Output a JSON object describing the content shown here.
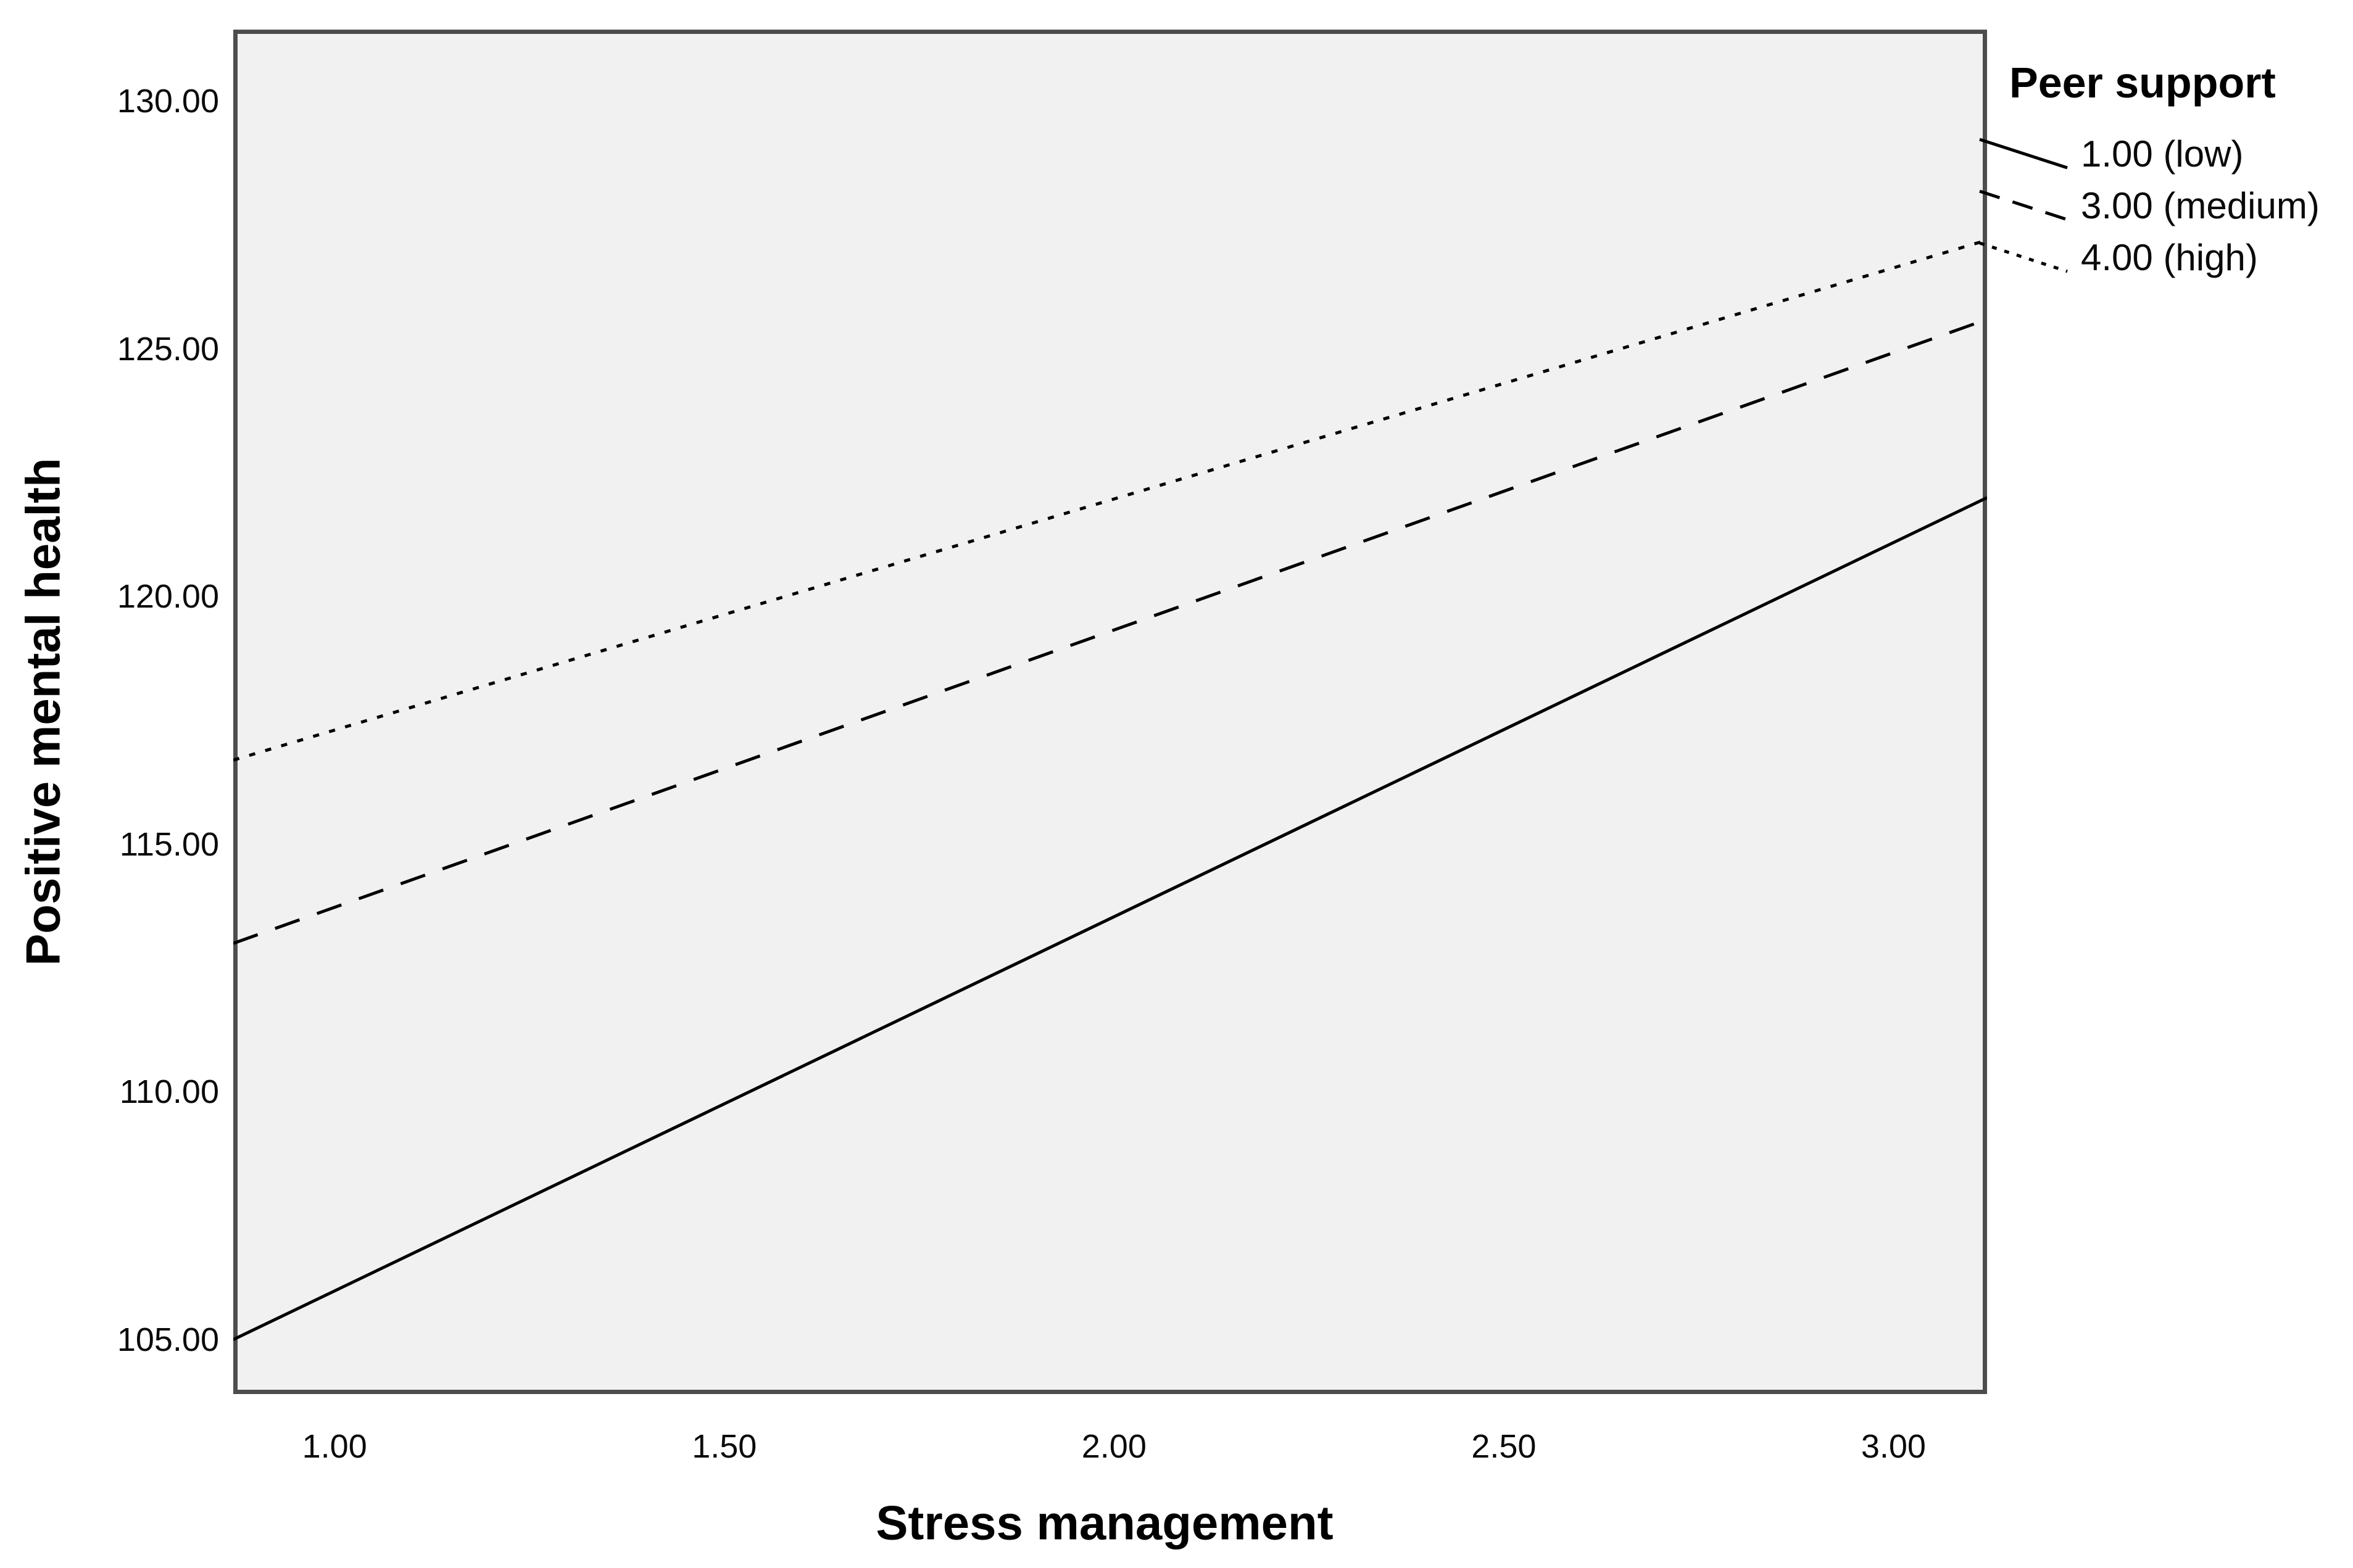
{
  "chart_data": {
    "type": "line",
    "title": "",
    "xlabel": "Stress management",
    "ylabel": "Positive mental health",
    "legend_title": "Peer support",
    "legend_position": "outside-top-right",
    "grid": false,
    "plot_bg_color": "#f1f1f1",
    "frame_color": "#4d4d4d",
    "line_color": "#000000",
    "xlim": [
      0.87,
      3.12
    ],
    "ylim": [
      103.9,
      131.45
    ],
    "x_ticks": {
      "values": [
        1.0,
        1.5,
        2.0,
        2.5,
        3.0
      ],
      "labels": [
        "1.00",
        "1.50",
        "2.00",
        "2.50",
        "3.00"
      ]
    },
    "y_ticks": {
      "values": [
        105,
        110,
        115,
        120,
        125,
        130
      ],
      "labels": [
        "105.00",
        "110.00",
        "115.00",
        "120.00",
        "125.00",
        "130.00"
      ]
    },
    "series": [
      {
        "name": "1.00 (low)",
        "style": "solid",
        "x": [
          0.87,
          3.12
        ],
        "y": [
          105.0,
          122.0
        ]
      },
      {
        "name": "3.00 (medium)",
        "style": "dashed",
        "x": [
          0.87,
          3.12
        ],
        "y": [
          113.0,
          125.6
        ]
      },
      {
        "name": "4.00 (high)",
        "style": "dotted",
        "x": [
          0.87,
          3.12
        ],
        "y": [
          116.7,
          127.2
        ]
      }
    ]
  }
}
